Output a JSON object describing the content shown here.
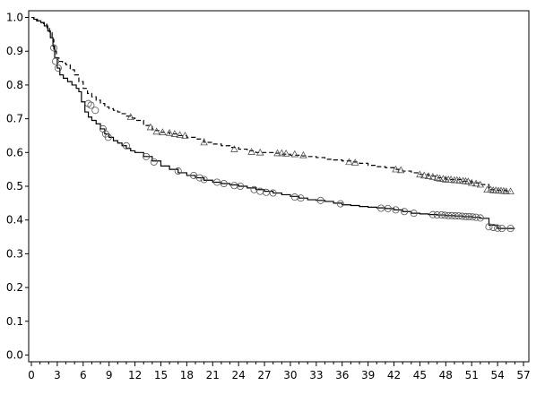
{
  "chart_data": {
    "type": "line",
    "title": "",
    "xlabel": "",
    "ylabel": "",
    "xlim": [
      0,
      57
    ],
    "ylim": [
      0,
      1.0
    ],
    "x_ticks": [
      0,
      3,
      6,
      9,
      12,
      15,
      18,
      21,
      24,
      27,
      30,
      33,
      36,
      39,
      42,
      45,
      48,
      51,
      54,
      57
    ],
    "x_tick_labels": [
      "0",
      "3",
      "6",
      "9",
      "12",
      "15",
      "18",
      "21",
      "24",
      "27",
      "30",
      "33",
      "36",
      "39",
      "42",
      "45",
      "48",
      "51",
      "54",
      "57"
    ],
    "y_ticks": [
      0.0,
      0.1,
      0.2,
      0.3,
      0.4,
      0.5,
      0.6,
      0.7,
      0.8,
      0.9,
      1.0
    ],
    "y_tick_labels": [
      "0.0",
      "0.1",
      "0.2",
      "0.3",
      "0.4",
      "0.5",
      "0.6",
      "0.7",
      "0.8",
      "0.9",
      "1.0"
    ],
    "grid": false,
    "legend": "none",
    "series": [
      {
        "line_style": "dashed",
        "color": "#000000",
        "censor_marker": "triangle",
        "x": [
          0,
          0.3,
          0.6,
          1,
          1.4,
          1.8,
          2.1,
          2.4,
          2.6,
          2.9,
          3.2,
          3.6,
          4,
          4.5,
          5,
          5.5,
          6,
          6.5,
          7,
          7.5,
          8,
          8.5,
          9,
          9.5,
          10,
          10.5,
          11,
          11.5,
          12,
          13,
          14,
          15,
          16,
          17,
          18,
          19,
          20,
          21,
          22,
          23,
          24,
          25,
          26,
          27,
          28,
          29,
          30,
          31,
          32,
          33,
          34,
          35,
          36,
          37,
          38,
          39,
          40,
          41,
          42,
          43,
          44,
          45,
          46,
          47,
          48,
          49,
          50,
          51,
          52,
          53,
          54,
          55,
          55.5
        ],
        "y": [
          1.0,
          0.995,
          0.99,
          0.985,
          0.98,
          0.97,
          0.955,
          0.935,
          0.9,
          0.88,
          0.87,
          0.865,
          0.86,
          0.845,
          0.83,
          0.81,
          0.79,
          0.775,
          0.765,
          0.755,
          0.745,
          0.735,
          0.73,
          0.725,
          0.72,
          0.715,
          0.708,
          0.702,
          0.695,
          0.68,
          0.665,
          0.66,
          0.655,
          0.65,
          0.645,
          0.64,
          0.63,
          0.625,
          0.62,
          0.615,
          0.61,
          0.605,
          0.6,
          0.6,
          0.598,
          0.595,
          0.592,
          0.59,
          0.588,
          0.585,
          0.58,
          0.578,
          0.575,
          0.572,
          0.568,
          0.562,
          0.558,
          0.555,
          0.55,
          0.545,
          0.54,
          0.535,
          0.53,
          0.525,
          0.52,
          0.52,
          0.515,
          0.51,
          0.505,
          0.49,
          0.488,
          0.485,
          0.485
        ],
        "censored_x": [
          11.5,
          13.8,
          14.5,
          15.2,
          16,
          16.6,
          17.2,
          17.8,
          20,
          23.5,
          25.5,
          26.5,
          28.5,
          29,
          29.5,
          30.5,
          31.5,
          36.8,
          37.5,
          42.2,
          42.8,
          45,
          45.5,
          46,
          46.5,
          47,
          47.3,
          47.7,
          48,
          48.3,
          48.6,
          49,
          49.3,
          49.6,
          50,
          50.3,
          50.6,
          51,
          51.5,
          52,
          52.8,
          53.2,
          53.5,
          53.8,
          54.1,
          54.4,
          54.7,
          55,
          55.5
        ],
        "censored_y": [
          0.705,
          0.675,
          0.662,
          0.66,
          0.658,
          0.655,
          0.652,
          0.65,
          0.63,
          0.61,
          0.602,
          0.6,
          0.598,
          0.598,
          0.597,
          0.595,
          0.592,
          0.572,
          0.57,
          0.55,
          0.548,
          0.535,
          0.532,
          0.53,
          0.528,
          0.525,
          0.523,
          0.522,
          0.52,
          0.52,
          0.52,
          0.518,
          0.518,
          0.517,
          0.516,
          0.515,
          0.514,
          0.51,
          0.508,
          0.505,
          0.49,
          0.49,
          0.488,
          0.488,
          0.487,
          0.487,
          0.486,
          0.485,
          0.485
        ]
      },
      {
        "line_style": "solid",
        "color": "#000000",
        "censor_marker": "circle",
        "x": [
          0,
          0.3,
          0.7,
          1.1,
          1.5,
          1.9,
          2.2,
          2.5,
          2.7,
          3,
          3.3,
          3.7,
          4.2,
          4.7,
          5.2,
          5.5,
          5.8,
          6.2,
          6.6,
          7,
          7.5,
          8,
          8.5,
          9,
          9.5,
          10,
          10.5,
          11,
          11.5,
          12,
          13,
          14,
          15,
          16,
          17,
          18,
          19,
          20,
          21,
          22,
          23,
          24,
          25,
          26,
          27,
          28,
          29,
          30,
          31,
          32,
          33,
          34,
          35,
          36,
          37,
          38,
          39,
          40,
          41,
          42,
          43,
          44,
          45,
          46,
          47,
          48,
          49,
          50,
          51,
          52,
          53,
          54,
          55,
          56
        ],
        "y": [
          1.0,
          0.995,
          0.99,
          0.985,
          0.975,
          0.96,
          0.94,
          0.915,
          0.88,
          0.85,
          0.83,
          0.82,
          0.81,
          0.8,
          0.79,
          0.78,
          0.75,
          0.72,
          0.705,
          0.695,
          0.685,
          0.67,
          0.655,
          0.645,
          0.635,
          0.628,
          0.62,
          0.612,
          0.605,
          0.6,
          0.588,
          0.575,
          0.56,
          0.55,
          0.54,
          0.532,
          0.525,
          0.518,
          0.512,
          0.508,
          0.504,
          0.5,
          0.495,
          0.49,
          0.485,
          0.48,
          0.475,
          0.47,
          0.465,
          0.46,
          0.458,
          0.455,
          0.45,
          0.445,
          0.443,
          0.44,
          0.438,
          0.436,
          0.434,
          0.43,
          0.425,
          0.42,
          0.418,
          0.416,
          0.415,
          0.413,
          0.412,
          0.41,
          0.408,
          0.405,
          0.385,
          0.375,
          0.375,
          0.375
        ],
        "censored_x": [
          2.6,
          2.8,
          3.1,
          6.6,
          6.9,
          7.4,
          8.3,
          8.6,
          8.9,
          11,
          13.3,
          14.2,
          17,
          18.8,
          19.5,
          20,
          21.5,
          22.3,
          23.5,
          24.2,
          25.8,
          26.5,
          27.2,
          28,
          30.5,
          31.2,
          33.5,
          35.8,
          40.5,
          41.3,
          42.2,
          43.2,
          44.3,
          46.5,
          47,
          47.5,
          47.9,
          48.3,
          48.7,
          49.1,
          49.5,
          49.9,
          50.3,
          50.7,
          51.1,
          51.5,
          52,
          53,
          53.5,
          54,
          54.5,
          55.5
        ],
        "censored_y": [
          0.91,
          0.87,
          0.85,
          0.745,
          0.74,
          0.725,
          0.67,
          0.655,
          0.645,
          0.62,
          0.588,
          0.572,
          0.545,
          0.532,
          0.525,
          0.52,
          0.512,
          0.508,
          0.502,
          0.5,
          0.49,
          0.485,
          0.482,
          0.48,
          0.468,
          0.465,
          0.458,
          0.448,
          0.435,
          0.434,
          0.43,
          0.425,
          0.42,
          0.416,
          0.415,
          0.415,
          0.414,
          0.413,
          0.413,
          0.412,
          0.412,
          0.411,
          0.41,
          0.41,
          0.409,
          0.408,
          0.406,
          0.38,
          0.378,
          0.376,
          0.375,
          0.375
        ]
      }
    ]
  }
}
